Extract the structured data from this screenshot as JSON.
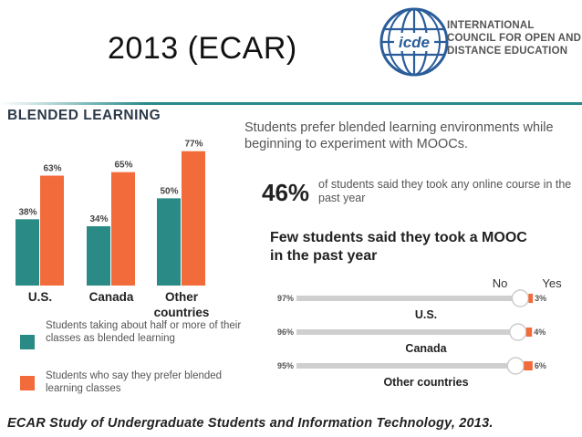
{
  "slide": {
    "title": "2013 (ECAR)",
    "source": "ECAR Study of Undergraduate Students and Information Technology, 2013."
  },
  "logo": {
    "icon": "icde-globe-logo",
    "lines": [
      "INTERNATIONAL",
      "COUNCIL FOR OPEN AND",
      "DISTANCE EDUCATION"
    ]
  },
  "blended": {
    "section_title": "BLENDED LEARNING",
    "heading": "Students prefer blended learning environments while beginning to experiment with MOOCs.",
    "legend": [
      {
        "label": "Students taking about half or more of their classes as blended learning",
        "color": "#2a8a86"
      },
      {
        "label": "Students who say they prefer blended learning classes",
        "color": "#f26b3a"
      }
    ]
  },
  "online_stat": {
    "value": "46%",
    "text": "of students said they took any online course in the past year"
  },
  "mooc": {
    "heading": "Few students said they took a MOOC in the past year",
    "no_label": "No",
    "yes_label": "Yes"
  },
  "colors": {
    "teal": "#2a8a86",
    "orange": "#f26b3a",
    "gray": "#cfcfcf"
  },
  "chart_data": [
    {
      "type": "bar",
      "categories": [
        "U.S.",
        "Canada",
        "Other countries"
      ],
      "series": [
        {
          "values": [
            38,
            34,
            50
          ],
          "labels": [
            "38%",
            "34%",
            "50%"
          ]
        },
        {
          "values": [
            63,
            65,
            77
          ],
          "labels": [
            "63%",
            "65%",
            "77%"
          ]
        }
      ],
      "ylim": [
        0,
        80
      ]
    },
    {
      "type": "bar",
      "orientation": "horizontal",
      "categories": [
        "U.S.",
        "Canada",
        "Other countries"
      ],
      "series": [
        {
          "name": "No",
          "values": [
            97,
            96,
            95
          ],
          "labels": [
            "97%",
            "96%",
            "95%"
          ]
        },
        {
          "name": "Yes",
          "values": [
            3,
            4,
            6
          ],
          "labels": [
            "3%",
            "4%",
            "6%"
          ]
        }
      ]
    }
  ]
}
